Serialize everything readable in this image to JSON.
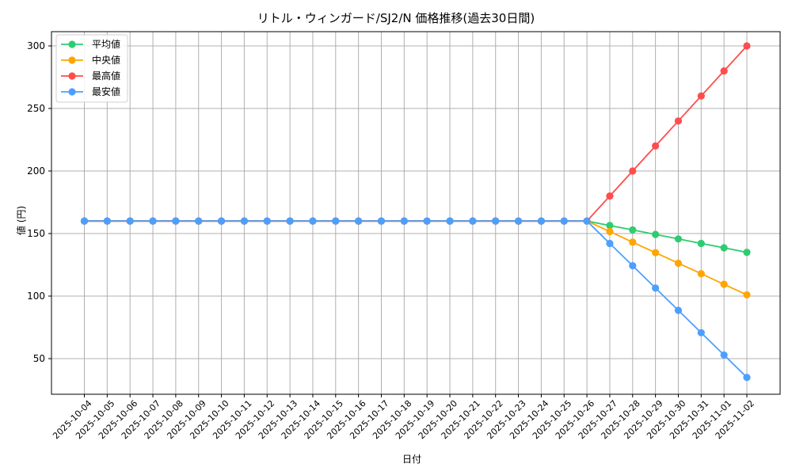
{
  "chart_data": {
    "type": "line",
    "title": "リトル・ウィンガード/SJ2/N 価格推移(過去30日間)",
    "xlabel": "日付",
    "ylabel": "値 (円)",
    "ylim": [
      22,
      313
    ],
    "yticks": [
      50,
      100,
      150,
      200,
      250,
      300
    ],
    "grid": true,
    "legend_position": "upper left",
    "x": [
      "2025-10-04",
      "2025-10-05",
      "2025-10-06",
      "2025-10-07",
      "2025-10-08",
      "2025-10-09",
      "2025-10-10",
      "2025-10-11",
      "2025-10-12",
      "2025-10-13",
      "2025-10-14",
      "2025-10-15",
      "2025-10-16",
      "2025-10-17",
      "2025-10-18",
      "2025-10-19",
      "2025-10-20",
      "2025-10-21",
      "2025-10-22",
      "2025-10-23",
      "2025-10-24",
      "2025-10-25",
      "2025-10-26",
      "2025-10-27",
      "2025-10-28",
      "2025-10-29",
      "2025-10-30",
      "2025-10-31",
      "2025-11-01",
      "2025-11-02"
    ],
    "series": [
      {
        "name": "平均値",
        "color": "#2ecc71",
        "values": [
          160,
          160,
          160,
          160,
          160,
          160,
          160,
          160,
          160,
          160,
          160,
          160,
          160,
          160,
          160,
          160,
          160,
          160,
          160,
          160,
          160,
          160,
          160,
          156.4,
          152.9,
          149.3,
          145.7,
          142.1,
          138.6,
          135
        ]
      },
      {
        "name": "中央値",
        "color": "#ffa500",
        "values": [
          160,
          160,
          160,
          160,
          160,
          160,
          160,
          160,
          160,
          160,
          160,
          160,
          160,
          160,
          160,
          160,
          160,
          160,
          160,
          160,
          160,
          160,
          160,
          151.6,
          143.1,
          134.7,
          126.3,
          117.9,
          109.4,
          101
        ]
      },
      {
        "name": "最高値",
        "color": "#ff4d4d",
        "values": [
          160,
          160,
          160,
          160,
          160,
          160,
          160,
          160,
          160,
          160,
          160,
          160,
          160,
          160,
          160,
          160,
          160,
          160,
          160,
          160,
          160,
          160,
          160,
          180,
          200,
          220,
          240,
          260,
          280,
          300
        ]
      },
      {
        "name": "最安値",
        "color": "#4d9fff",
        "values": [
          160,
          160,
          160,
          160,
          160,
          160,
          160,
          160,
          160,
          160,
          160,
          160,
          160,
          160,
          160,
          160,
          160,
          160,
          160,
          160,
          160,
          160,
          160,
          142.1,
          124.3,
          106.4,
          88.6,
          70.7,
          52.9,
          35
        ]
      }
    ]
  }
}
